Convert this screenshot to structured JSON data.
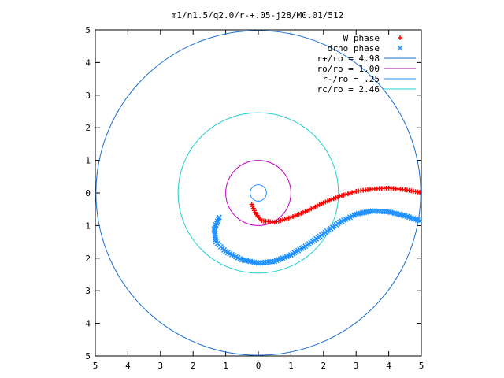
{
  "chart_data": {
    "type": "scatter",
    "title": "m1/n1.5/q2.0/r-+.05-j28/M0.01/512",
    "xlabel": "",
    "ylabel": "",
    "xlim": [
      -5,
      5
    ],
    "ylim": [
      -5,
      5
    ],
    "x_ticks": [
      -5,
      -4,
      -3,
      -2,
      -1,
      0,
      1,
      2,
      3,
      4,
      5
    ],
    "y_ticks": [
      -5,
      -4,
      -3,
      -2,
      -1,
      0,
      1,
      2,
      3,
      4,
      5
    ],
    "x_tick_labels": [
      "5",
      "4",
      "3",
      "2",
      "1",
      "0",
      "1",
      "2",
      "3",
      "4",
      "5"
    ],
    "y_tick_labels": [
      "5",
      "4",
      "3",
      "2",
      "1",
      "0",
      "1",
      "2",
      "3",
      "4",
      "5"
    ],
    "grid": false,
    "legend_position": "top-right",
    "series": [
      {
        "name": "W phase",
        "marker": "+",
        "color": "#ff0000",
        "points": [
          [
            -0.2,
            -0.35
          ],
          [
            -0.1,
            -0.6
          ],
          [
            0.1,
            -0.85
          ],
          [
            0.5,
            -0.9
          ],
          [
            1.0,
            -0.75
          ],
          [
            1.5,
            -0.55
          ],
          [
            2.0,
            -0.3
          ],
          [
            2.5,
            -0.1
          ],
          [
            3.0,
            0.05
          ],
          [
            3.5,
            0.12
          ],
          [
            4.0,
            0.15
          ],
          [
            4.5,
            0.1
          ],
          [
            4.95,
            0.02
          ]
        ]
      },
      {
        "name": "drho phase",
        "marker": "x",
        "color": "#1e90ff",
        "points": [
          [
            -1.2,
            -0.75
          ],
          [
            -1.35,
            -1.1
          ],
          [
            -1.3,
            -1.5
          ],
          [
            -1.0,
            -1.8
          ],
          [
            -0.5,
            -2.05
          ],
          [
            0.0,
            -2.15
          ],
          [
            0.5,
            -2.1
          ],
          [
            1.0,
            -1.9
          ],
          [
            1.5,
            -1.6
          ],
          [
            2.0,
            -1.25
          ],
          [
            2.5,
            -0.9
          ],
          [
            3.0,
            -0.65
          ],
          [
            3.5,
            -0.55
          ],
          [
            4.0,
            -0.58
          ],
          [
            4.5,
            -0.7
          ],
          [
            4.95,
            -0.85
          ]
        ]
      },
      {
        "name": "r+/ro = 4.98",
        "type": "circle",
        "radius": 4.98,
        "color": "#1a6fd1"
      },
      {
        "name": "ro/ro = 1.00",
        "type": "circle",
        "radius": 1.0,
        "color": "#c000c0"
      },
      {
        "name": "r-/ro = .25",
        "type": "circle",
        "radius": 0.25,
        "color": "#1e90ff"
      },
      {
        "name": "rc/ro = 2.46",
        "type": "circle",
        "radius": 2.46,
        "color": "#20d0d0"
      }
    ]
  }
}
